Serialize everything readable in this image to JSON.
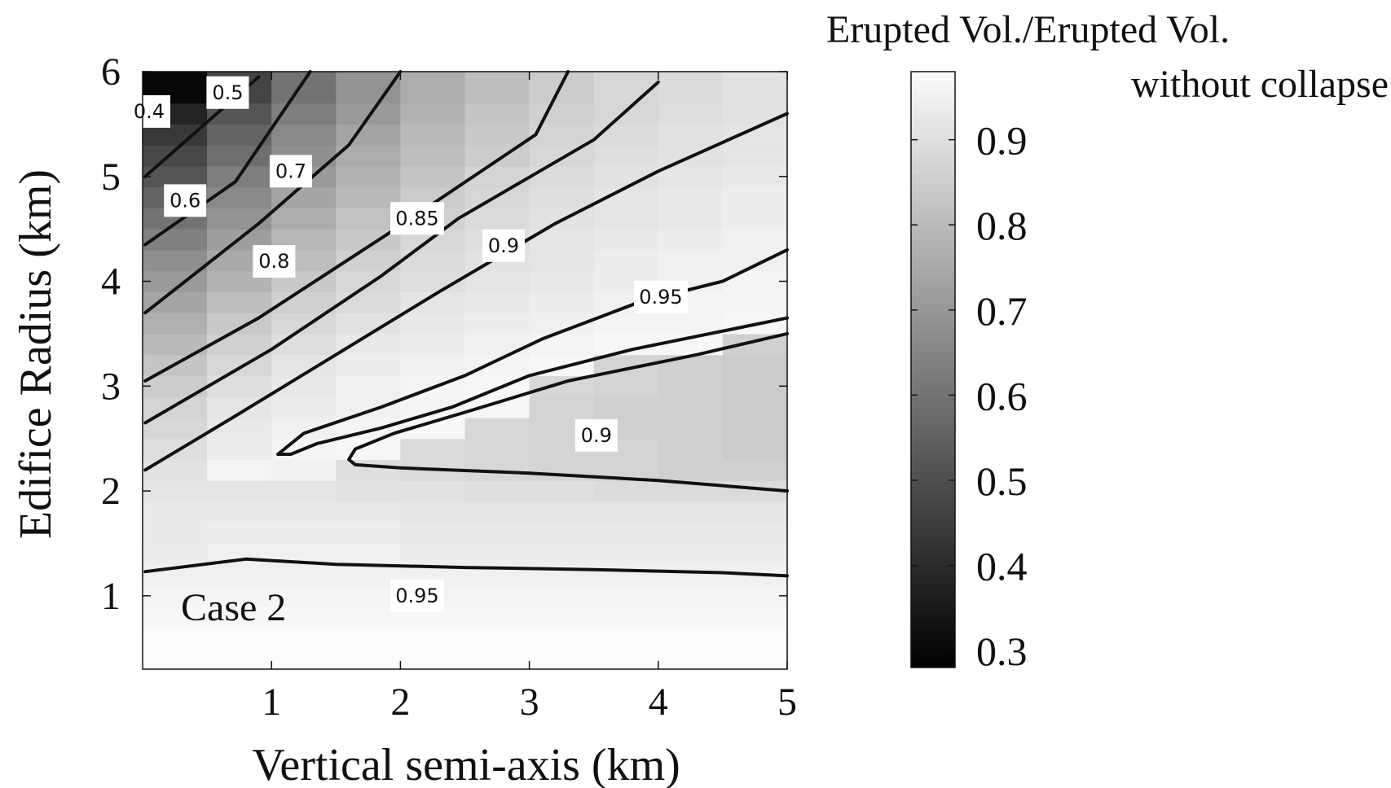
{
  "chart_data": {
    "type": "heatmap",
    "title": "",
    "xlabel": "Vertical semi-axis (km)",
    "ylabel": "Edifice Radius (km)",
    "annotation": "Case 2",
    "xlim": [
      0,
      5
    ],
    "ylim": [
      0.3,
      6
    ],
    "xticks": [
      1,
      2,
      3,
      4,
      5
    ],
    "yticks": [
      1,
      2,
      3,
      4,
      5,
      6
    ],
    "colorbar": {
      "label_line1": "Erupted Vol./Erupted Vol.",
      "label_line2": "without collapse",
      "range": [
        0.28,
        0.98
      ],
      "ticks": [
        0.3,
        0.4,
        0.5,
        0.6,
        0.7,
        0.8,
        0.9
      ],
      "colormap": "gray"
    },
    "grid": {
      "x_edges": [
        0,
        0.5,
        1,
        1.5,
        2,
        2.5,
        3,
        3.5,
        4,
        4.5,
        5
      ],
      "y_edges": [
        0.3,
        0.5,
        0.7,
        0.9,
        1.1,
        1.3,
        1.5,
        1.7,
        1.9,
        2.1,
        2.3,
        2.5,
        2.7,
        2.9,
        3.1,
        3.3,
        3.5,
        3.7,
        3.9,
        4.1,
        4.3,
        4.5,
        4.7,
        4.9,
        5.1,
        5.3,
        5.5,
        5.7,
        6.0
      ],
      "values": [
        [
          0.99,
          0.99,
          0.99,
          0.99,
          0.99,
          0.99,
          0.99,
          0.99,
          0.99,
          0.99
        ],
        [
          0.98,
          0.98,
          0.98,
          0.98,
          0.98,
          0.98,
          0.98,
          0.98,
          0.98,
          0.98
        ],
        [
          0.97,
          0.97,
          0.97,
          0.97,
          0.97,
          0.97,
          0.97,
          0.97,
          0.97,
          0.97
        ],
        [
          0.96,
          0.96,
          0.96,
          0.96,
          0.96,
          0.96,
          0.96,
          0.96,
          0.96,
          0.96
        ],
        [
          0.95,
          0.95,
          0.95,
          0.95,
          0.95,
          0.95,
          0.95,
          0.95,
          0.95,
          0.95
        ],
        [
          0.94,
          0.95,
          0.95,
          0.95,
          0.94,
          0.94,
          0.94,
          0.94,
          0.94,
          0.94
        ],
        [
          0.93,
          0.94,
          0.94,
          0.94,
          0.93,
          0.93,
          0.93,
          0.93,
          0.93,
          0.93
        ],
        [
          0.93,
          0.93,
          0.93,
          0.93,
          0.92,
          0.92,
          0.92,
          0.92,
          0.92,
          0.92
        ],
        [
          0.92,
          0.92,
          0.92,
          0.91,
          0.91,
          0.9,
          0.9,
          0.89,
          0.89,
          0.89
        ],
        [
          0.91,
          0.96,
          0.95,
          0.9,
          0.89,
          0.88,
          0.87,
          0.87,
          0.86,
          0.86
        ],
        [
          0.9,
          0.94,
          0.96,
          0.97,
          0.89,
          0.88,
          0.87,
          0.87,
          0.86,
          0.85
        ],
        [
          0.88,
          0.93,
          0.95,
          0.96,
          0.97,
          0.88,
          0.87,
          0.86,
          0.86,
          0.85
        ],
        [
          0.87,
          0.92,
          0.94,
          0.95,
          0.96,
          0.97,
          0.87,
          0.86,
          0.86,
          0.85
        ],
        [
          0.85,
          0.9,
          0.93,
          0.95,
          0.96,
          0.97,
          0.88,
          0.87,
          0.86,
          0.85
        ],
        [
          0.83,
          0.88,
          0.92,
          0.94,
          0.95,
          0.96,
          0.97,
          0.87,
          0.86,
          0.85
        ],
        [
          0.8,
          0.86,
          0.9,
          0.93,
          0.94,
          0.95,
          0.96,
          0.97,
          0.97,
          0.86
        ],
        [
          0.77,
          0.84,
          0.88,
          0.91,
          0.93,
          0.94,
          0.95,
          0.96,
          0.96,
          0.97
        ],
        [
          0.74,
          0.81,
          0.86,
          0.89,
          0.92,
          0.93,
          0.94,
          0.95,
          0.96,
          0.96
        ],
        [
          0.71,
          0.78,
          0.84,
          0.88,
          0.9,
          0.92,
          0.93,
          0.94,
          0.95,
          0.96
        ],
        [
          0.68,
          0.75,
          0.81,
          0.86,
          0.89,
          0.91,
          0.92,
          0.94,
          0.95,
          0.95
        ],
        [
          0.64,
          0.72,
          0.79,
          0.84,
          0.88,
          0.9,
          0.92,
          0.93,
          0.94,
          0.95
        ],
        [
          0.6,
          0.69,
          0.76,
          0.82,
          0.86,
          0.89,
          0.91,
          0.92,
          0.93,
          0.94
        ],
        [
          0.56,
          0.66,
          0.74,
          0.8,
          0.85,
          0.88,
          0.9,
          0.92,
          0.93,
          0.94
        ],
        [
          0.52,
          0.63,
          0.71,
          0.78,
          0.83,
          0.87,
          0.89,
          0.91,
          0.92,
          0.93
        ],
        [
          0.48,
          0.59,
          0.68,
          0.76,
          0.81,
          0.85,
          0.88,
          0.9,
          0.91,
          0.92
        ],
        [
          0.44,
          0.56,
          0.66,
          0.74,
          0.8,
          0.84,
          0.87,
          0.89,
          0.91,
          0.92
        ],
        [
          0.38,
          0.52,
          0.63,
          0.71,
          0.78,
          0.83,
          0.86,
          0.88,
          0.9,
          0.91
        ],
        [
          0.3,
          0.47,
          0.6,
          0.69,
          0.76,
          0.81,
          0.85,
          0.88,
          0.89,
          0.91
        ]
      ]
    },
    "contours": [
      {
        "level": "0.5",
        "points": [
          [
            0.02,
            5.0
          ],
          [
            0.9,
            5.95
          ]
        ]
      },
      {
        "level": "0.6",
        "points": [
          [
            0.02,
            4.35
          ],
          [
            0.72,
            4.95
          ],
          [
            1.3,
            6.0
          ]
        ]
      },
      {
        "level": "0.7",
        "points": [
          [
            0.02,
            3.7
          ],
          [
            0.9,
            4.55
          ],
          [
            1.6,
            5.3
          ],
          [
            2.0,
            6.0
          ]
        ]
      },
      {
        "level": "0.8",
        "points": [
          [
            0.02,
            3.05
          ],
          [
            0.9,
            3.65
          ],
          [
            1.9,
            4.45
          ],
          [
            3.05,
            5.4
          ],
          [
            3.3,
            6.0
          ]
        ]
      },
      {
        "level": "0.85",
        "points": [
          [
            0.02,
            2.65
          ],
          [
            1.0,
            3.35
          ],
          [
            1.85,
            4.05
          ],
          [
            2.45,
            4.6
          ],
          [
            3.5,
            5.35
          ],
          [
            4.0,
            5.9
          ]
        ]
      },
      {
        "level": "0.9",
        "points": [
          [
            0.02,
            2.2
          ],
          [
            0.7,
            2.7
          ],
          [
            1.5,
            3.3
          ],
          [
            2.3,
            3.9
          ],
          [
            3.2,
            4.55
          ],
          [
            4.0,
            5.05
          ],
          [
            5.0,
            5.6
          ]
        ]
      },
      {
        "level": "0.95",
        "points": [
          [
            1.05,
            2.35
          ],
          [
            1.25,
            2.55
          ],
          [
            1.85,
            2.8
          ],
          [
            2.5,
            3.1
          ],
          [
            3.1,
            3.45
          ],
          [
            3.85,
            3.8
          ],
          [
            4.5,
            4.0
          ],
          [
            5.0,
            4.3
          ]
        ]
      },
      {
        "level": "0.95",
        "points": [
          [
            5.0,
            3.65
          ],
          [
            4.6,
            3.55
          ],
          [
            3.8,
            3.35
          ],
          [
            3.0,
            3.1
          ],
          [
            2.4,
            2.8
          ],
          [
            1.85,
            2.6
          ],
          [
            1.35,
            2.45
          ],
          [
            1.15,
            2.35
          ],
          [
            1.05,
            2.35
          ]
        ]
      },
      {
        "level": "0.9",
        "points": [
          [
            5.0,
            3.5
          ],
          [
            4.3,
            3.3
          ],
          [
            3.3,
            3.05
          ],
          [
            2.5,
            2.75
          ],
          [
            1.95,
            2.55
          ],
          [
            1.65,
            2.4
          ],
          [
            1.6,
            2.3
          ],
          [
            1.65,
            2.25
          ],
          [
            2.0,
            2.22
          ],
          [
            3.0,
            2.17
          ],
          [
            4.0,
            2.1
          ],
          [
            5.0,
            2.0
          ]
        ]
      },
      {
        "level": "0.95",
        "points": [
          [
            0.02,
            1.23
          ],
          [
            0.8,
            1.35
          ],
          [
            1.5,
            1.3
          ],
          [
            2.5,
            1.27
          ],
          [
            3.5,
            1.25
          ],
          [
            4.5,
            1.22
          ],
          [
            5.0,
            1.19
          ]
        ]
      }
    ],
    "contour_labels": [
      {
        "text": "0.4",
        "x": 0.05,
        "y": 5.62
      },
      {
        "text": "0.5",
        "x": 0.66,
        "y": 5.8
      },
      {
        "text": "0.6",
        "x": 0.33,
        "y": 4.77
      },
      {
        "text": "0.7",
        "x": 1.15,
        "y": 5.05
      },
      {
        "text": "0.8",
        "x": 1.02,
        "y": 4.19
      },
      {
        "text": "0.85",
        "x": 2.13,
        "y": 4.6
      },
      {
        "text": "0.9",
        "x": 2.8,
        "y": 4.34
      },
      {
        "text": "0.95",
        "x": 4.02,
        "y": 3.85
      },
      {
        "text": "0.9",
        "x": 3.52,
        "y": 2.53
      },
      {
        "text": "0.95",
        "x": 2.13,
        "y": 1.0
      }
    ]
  }
}
